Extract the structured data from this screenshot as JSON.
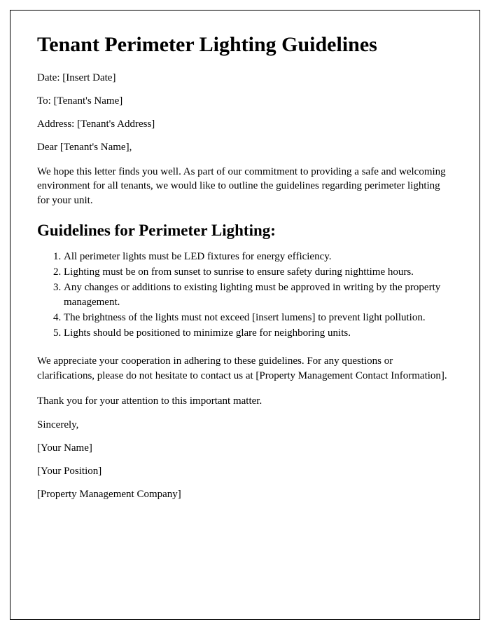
{
  "title": "Tenant Perimeter Lighting Guidelines",
  "meta": {
    "date_label": "Date: [Insert Date]",
    "to_label": "To: [Tenant's Name]",
    "address_label": "Address: [Tenant's Address]",
    "salutation": "Dear [Tenant's Name],"
  },
  "intro": "We hope this letter finds you well. As part of our commitment to providing a safe and welcoming environment for all tenants, we would like to outline the guidelines regarding perimeter lighting for your unit.",
  "guidelines_heading": "Guidelines for Perimeter Lighting:",
  "guidelines": [
    "All perimeter lights must be LED fixtures for energy efficiency.",
    "Lighting must be on from sunset to sunrise to ensure safety during nighttime hours.",
    "Any changes or additions to existing lighting must be approved in writing by the property management.",
    "The brightness of the lights must not exceed [insert lumens] to prevent light pollution.",
    "Lights should be positioned to minimize glare for neighboring units."
  ],
  "closing1": "We appreciate your cooperation in adhering to these guidelines. For any questions or clarifications, please do not hesitate to contact us at [Property Management Contact Information].",
  "closing2": "Thank you for your attention to this important matter.",
  "signature": {
    "sincerely": "Sincerely,",
    "name": "[Your Name]",
    "position": "[Your Position]",
    "company": "[Property Management Company]"
  }
}
